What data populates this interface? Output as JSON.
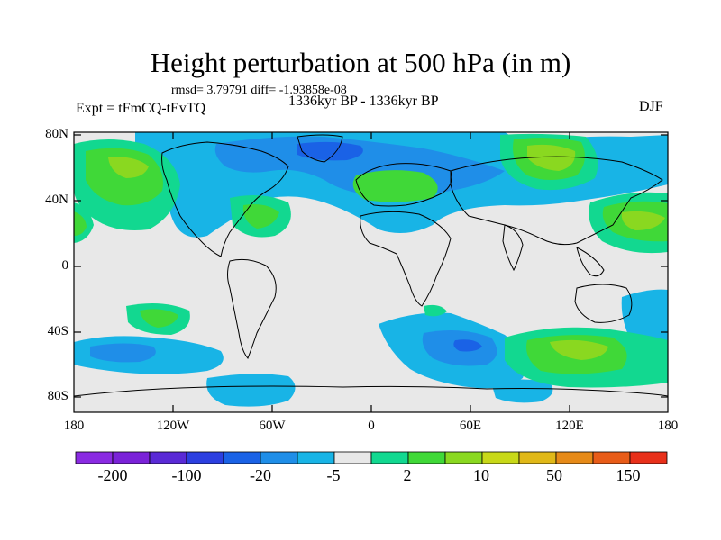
{
  "title": "Height perturbation at 500 hPa (in m)",
  "stats": "rmsd= 3.79791 diff= -1.93858e-08",
  "experiment": "Expt = tFmCQ-tEvTQ",
  "period": "1336kyr BP - 1336kyr BP",
  "season": "DJF",
  "lat_labels": [
    "80N",
    "40N",
    "0",
    "40S",
    "80S"
  ],
  "lon_labels": [
    "180",
    "120W",
    "60W",
    "0",
    "60E",
    "120E",
    "180"
  ],
  "colorbar": {
    "colors": [
      "#8a2be2",
      "#7a22d8",
      "#5a2ad6",
      "#2c3fe0",
      "#1a62e6",
      "#1f8ee8",
      "#18b4e6",
      "#e8e8e8",
      "#12d890",
      "#40d838",
      "#8ad820",
      "#c8d818",
      "#e0b818",
      "#e68a18",
      "#e85c18",
      "#e8301a"
    ],
    "labels": [
      "-200",
      "-100",
      "-20",
      "-5",
      "2",
      "10",
      "50",
      "150"
    ]
  },
  "palette": {
    "background": "#e8e8e8",
    "neg_light": "#18b4e6",
    "neg_mid": "#1f8ee8",
    "neg_dark": "#1a62e6",
    "pos_light": "#12d890",
    "pos_mid": "#40d838",
    "pos_strong": "#8ad820"
  }
}
